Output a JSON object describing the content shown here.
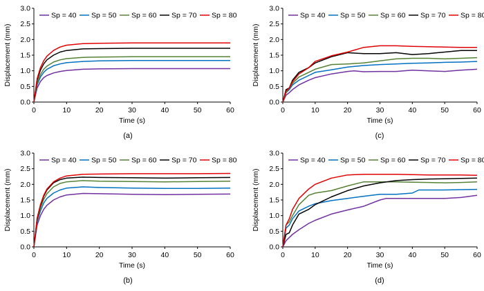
{
  "colors": {
    "Sp = 40": "#7030A0",
    "Sp = 50": "#0070C0",
    "Sp = 60": "#548235",
    "Sp = 70": "#000000",
    "Sp = 80": "#E00000"
  },
  "chart_data": [
    {
      "type": "line",
      "panel_label": "(a)",
      "xlabel": "Time (s)",
      "ylabel": "Displacement (mm)",
      "xlim": [
        0,
        60
      ],
      "ylim": [
        0,
        3.0
      ],
      "xticks": [
        "0",
        "10",
        "20",
        "30",
        "40",
        "50",
        "60"
      ],
      "yticks": [
        "0.0",
        "0.5",
        "1.0",
        "1.5",
        "2.0",
        "2.5",
        "3.0"
      ],
      "grid": false,
      "legend": "top",
      "series": [
        {
          "name": "Sp = 40",
          "x": [
            0,
            1,
            2,
            3,
            4,
            6,
            8,
            10,
            15,
            20,
            30,
            40,
            50,
            60
          ],
          "y": [
            0,
            0.45,
            0.66,
            0.78,
            0.85,
            0.93,
            0.98,
            1.01,
            1.05,
            1.06,
            1.07,
            1.07,
            1.07,
            1.07
          ]
        },
        {
          "name": "Sp = 50",
          "x": [
            0,
            1,
            2,
            3,
            4,
            6,
            8,
            10,
            15,
            20,
            30,
            40,
            50,
            60
          ],
          "y": [
            0,
            0.55,
            0.8,
            0.95,
            1.05,
            1.16,
            1.22,
            1.26,
            1.3,
            1.32,
            1.33,
            1.33,
            1.33,
            1.33
          ]
        },
        {
          "name": "Sp = 60",
          "x": [
            0,
            1,
            2,
            3,
            4,
            6,
            8,
            10,
            15,
            20,
            30,
            40,
            50,
            60
          ],
          "y": [
            0,
            0.6,
            0.88,
            1.05,
            1.15,
            1.28,
            1.35,
            1.39,
            1.43,
            1.44,
            1.45,
            1.45,
            1.45,
            1.45
          ]
        },
        {
          "name": "Sp = 70",
          "x": [
            0,
            1,
            2,
            3,
            4,
            6,
            8,
            10,
            15,
            20,
            30,
            40,
            50,
            60
          ],
          "y": [
            0,
            0.7,
            1.02,
            1.22,
            1.35,
            1.5,
            1.6,
            1.65,
            1.7,
            1.71,
            1.72,
            1.72,
            1.72,
            1.72
          ]
        },
        {
          "name": "Sp = 80",
          "x": [
            0,
            1,
            2,
            3,
            4,
            6,
            8,
            10,
            15,
            20,
            30,
            40,
            50,
            60
          ],
          "y": [
            0,
            0.75,
            1.1,
            1.32,
            1.47,
            1.65,
            1.76,
            1.82,
            1.87,
            1.88,
            1.89,
            1.89,
            1.89,
            1.89
          ]
        }
      ]
    },
    {
      "type": "line",
      "panel_label": "(c)",
      "xlabel": "Time (s)",
      "ylabel": "Displacement (mm)",
      "xlim": [
        0,
        60
      ],
      "ylim": [
        0,
        3.0
      ],
      "xticks": [
        "0",
        "10",
        "20",
        "30",
        "40",
        "50",
        "60"
      ],
      "yticks": [
        "0.0",
        "0.5",
        "1.0",
        "1.5",
        "2.0",
        "2.5",
        "3.0"
      ],
      "grid": false,
      "legend": "top",
      "series": [
        {
          "name": "Sp = 40",
          "x": [
            0,
            1,
            2,
            3,
            5,
            8,
            10,
            15,
            20,
            22,
            25,
            30,
            35,
            40,
            45,
            50,
            55,
            60
          ],
          "y": [
            0,
            0.22,
            0.3,
            0.4,
            0.55,
            0.7,
            0.78,
            0.9,
            0.98,
            1.0,
            0.97,
            0.98,
            0.98,
            1.02,
            1.0,
            0.98,
            1.02,
            1.05
          ]
        },
        {
          "name": "Sp = 50",
          "x": [
            0,
            1,
            2,
            3,
            5,
            8,
            10,
            15,
            20,
            25,
            30,
            35,
            40,
            45,
            50,
            55,
            60
          ],
          "y": [
            0,
            0.3,
            0.4,
            0.55,
            0.7,
            0.85,
            0.95,
            1.03,
            1.12,
            1.17,
            1.2,
            1.22,
            1.24,
            1.25,
            1.27,
            1.28,
            1.3
          ]
        },
        {
          "name": "Sp = 60",
          "x": [
            0,
            1,
            2,
            3,
            5,
            8,
            10,
            15,
            20,
            25,
            30,
            35,
            40,
            45,
            50,
            55,
            60
          ],
          "y": [
            0,
            0.3,
            0.45,
            0.6,
            0.8,
            0.95,
            1.05,
            1.2,
            1.22,
            1.25,
            1.32,
            1.38,
            1.4,
            1.4,
            1.38,
            1.4,
            1.42
          ]
        },
        {
          "name": "Sp = 70",
          "x": [
            0,
            1,
            2,
            3,
            5,
            8,
            10,
            15,
            20,
            25,
            30,
            35,
            40,
            45,
            50,
            55,
            60
          ],
          "y": [
            0,
            0.4,
            0.45,
            0.7,
            0.95,
            1.1,
            1.25,
            1.45,
            1.58,
            1.55,
            1.55,
            1.58,
            1.52,
            1.55,
            1.6,
            1.65,
            1.65
          ]
        },
        {
          "name": "Sp = 80",
          "x": [
            0,
            1,
            2,
            3,
            5,
            8,
            10,
            15,
            20,
            25,
            30,
            35,
            40,
            45,
            50,
            55,
            60
          ],
          "y": [
            0,
            0.35,
            0.45,
            0.65,
            0.9,
            1.1,
            1.3,
            1.48,
            1.6,
            1.75,
            1.8,
            1.8,
            1.78,
            1.77,
            1.76,
            1.75,
            1.75
          ]
        }
      ]
    },
    {
      "type": "line",
      "panel_label": "(b)",
      "xlabel": "Time (s)",
      "ylabel": "Displacement (mm)",
      "xlim": [
        0,
        60
      ],
      "ylim": [
        0,
        3.0
      ],
      "xticks": [
        "0",
        "10",
        "20",
        "30",
        "40",
        "50",
        "60"
      ],
      "yticks": [
        "0.0",
        "0.5",
        "1.0",
        "1.5",
        "2.0",
        "2.5",
        "3.0"
      ],
      "grid": false,
      "legend": "top",
      "series": [
        {
          "name": "Sp = 40",
          "x": [
            0,
            1,
            2,
            3,
            4,
            6,
            8,
            10,
            15,
            20,
            30,
            40,
            50,
            60
          ],
          "y": [
            0,
            0.7,
            1.0,
            1.2,
            1.33,
            1.5,
            1.6,
            1.66,
            1.71,
            1.7,
            1.68,
            1.67,
            1.68,
            1.69
          ]
        },
        {
          "name": "Sp = 50",
          "x": [
            0,
            1,
            2,
            3,
            4,
            6,
            8,
            10,
            15,
            20,
            30,
            40,
            50,
            60
          ],
          "y": [
            0,
            0.8,
            1.15,
            1.4,
            1.55,
            1.72,
            1.82,
            1.88,
            1.92,
            1.9,
            1.88,
            1.87,
            1.87,
            1.88
          ]
        },
        {
          "name": "Sp = 60",
          "x": [
            0,
            1,
            2,
            3,
            4,
            6,
            8,
            10,
            15,
            20,
            30,
            40,
            50,
            60
          ],
          "y": [
            0,
            0.85,
            1.25,
            1.52,
            1.7,
            1.92,
            2.03,
            2.08,
            2.12,
            2.1,
            2.09,
            2.08,
            2.09,
            2.1
          ]
        },
        {
          "name": "Sp = 70",
          "x": [
            0,
            1,
            2,
            3,
            4,
            6,
            8,
            10,
            15,
            20,
            30,
            40,
            50,
            60
          ],
          "y": [
            0,
            0.9,
            1.32,
            1.62,
            1.82,
            2.05,
            2.15,
            2.2,
            2.23,
            2.22,
            2.21,
            2.2,
            2.21,
            2.22
          ]
        },
        {
          "name": "Sp = 80",
          "x": [
            0,
            1,
            2,
            3,
            4,
            6,
            8,
            10,
            15,
            20,
            30,
            40,
            50,
            60
          ],
          "y": [
            0,
            0.92,
            1.35,
            1.65,
            1.85,
            2.08,
            2.2,
            2.27,
            2.32,
            2.33,
            2.34,
            2.34,
            2.34,
            2.35
          ]
        }
      ]
    },
    {
      "type": "line",
      "panel_label": "(d)",
      "xlabel": "Time (s)",
      "ylabel": "Displacement (mm)",
      "xlim": [
        0,
        60
      ],
      "ylim": [
        0,
        3.0
      ],
      "xticks": [
        "0",
        "10",
        "20",
        "30",
        "40",
        "50",
        "60"
      ],
      "yticks": [
        "0.0",
        "0.5",
        "1.0",
        "1.5",
        "2.0",
        "2.5",
        "3.0"
      ],
      "grid": false,
      "legend": "top",
      "series": [
        {
          "name": "Sp = 40",
          "x": [
            0,
            1,
            2,
            3,
            5,
            8,
            10,
            15,
            20,
            25,
            30,
            32,
            35,
            40,
            45,
            50,
            55,
            60
          ],
          "y": [
            0,
            0.2,
            0.3,
            0.4,
            0.55,
            0.75,
            0.85,
            1.05,
            1.18,
            1.3,
            1.5,
            1.55,
            1.55,
            1.55,
            1.55,
            1.55,
            1.58,
            1.65
          ]
        },
        {
          "name": "Sp = 50",
          "x": [
            0,
            1,
            2,
            3,
            5,
            8,
            10,
            15,
            20,
            25,
            30,
            35,
            40,
            42,
            45,
            50,
            55,
            60
          ],
          "y": [
            0,
            0.6,
            0.7,
            0.9,
            1.15,
            1.3,
            1.38,
            1.48,
            1.55,
            1.62,
            1.68,
            1.68,
            1.72,
            1.82,
            1.82,
            1.82,
            1.83,
            1.84
          ]
        },
        {
          "name": "Sp = 60",
          "x": [
            0,
            1,
            2,
            3,
            5,
            8,
            10,
            15,
            20,
            25,
            30,
            35,
            40,
            45,
            50,
            55,
            60
          ],
          "y": [
            0,
            0.7,
            0.8,
            1.0,
            1.35,
            1.65,
            1.72,
            1.8,
            1.95,
            2.08,
            2.08,
            2.08,
            2.07,
            2.06,
            2.05,
            2.06,
            2.08
          ]
        },
        {
          "name": "Sp = 70",
          "x": [
            0,
            1,
            2,
            3,
            5,
            8,
            10,
            15,
            20,
            25,
            30,
            35,
            40,
            45,
            50,
            55,
            60
          ],
          "y": [
            0,
            0.4,
            0.45,
            0.7,
            1.05,
            1.2,
            1.35,
            1.6,
            1.8,
            1.95,
            2.05,
            2.12,
            2.15,
            2.17,
            2.18,
            2.19,
            2.2
          ]
        },
        {
          "name": "Sp = 80",
          "x": [
            0,
            1,
            2,
            3,
            5,
            8,
            10,
            15,
            20,
            25,
            30,
            35,
            40,
            45,
            50,
            55,
            60
          ],
          "y": [
            0,
            0.7,
            0.9,
            1.2,
            1.55,
            1.85,
            2.0,
            2.2,
            2.3,
            2.32,
            2.32,
            2.32,
            2.31,
            2.3,
            2.3,
            2.3,
            2.29
          ]
        }
      ]
    }
  ]
}
